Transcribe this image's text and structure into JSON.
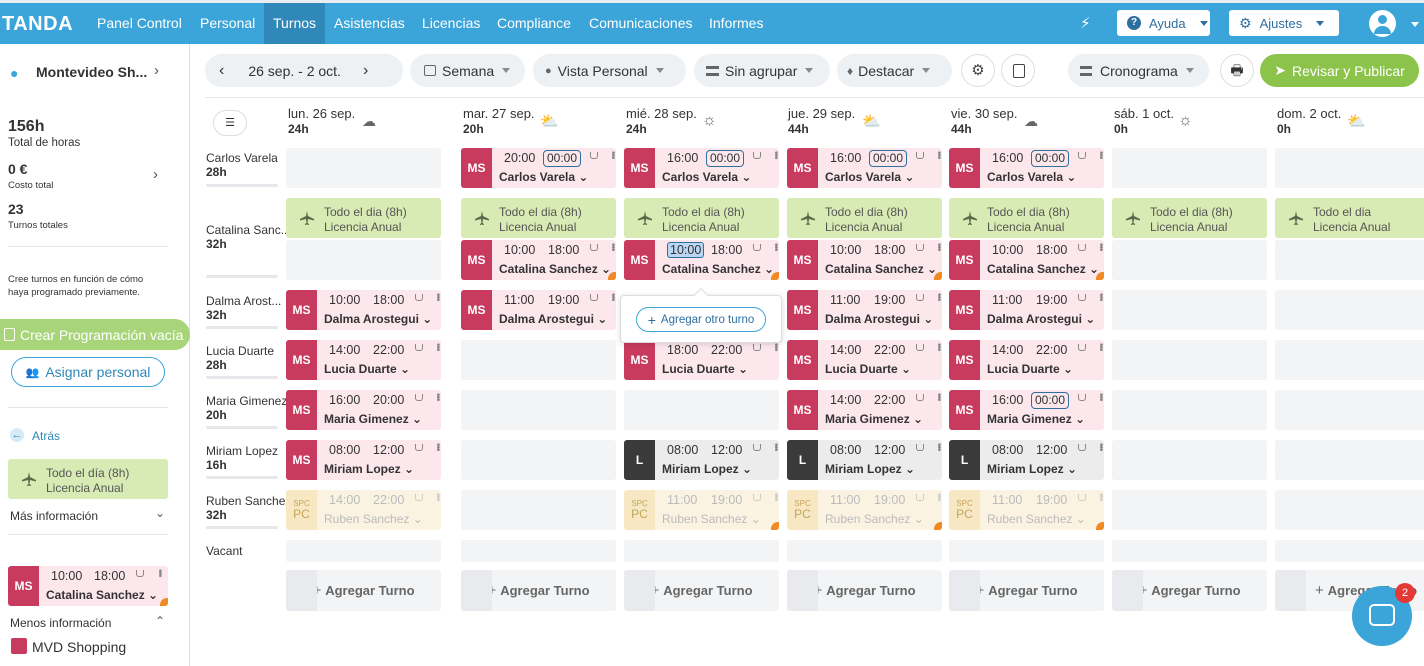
{
  "nav": {
    "logo": "TANDA",
    "items": [
      "Panel Control",
      "Personal",
      "Turnos",
      "Asistencias",
      "Licencias",
      "Compliance",
      "Comunicaciones",
      "Informes"
    ],
    "help": "Ayuda",
    "settings": "Ajustes"
  },
  "toolbar": {
    "range": "26 sep. - 2 oct.",
    "week": "Semana",
    "view": "Vista Personal",
    "group": "Sin agrupar",
    "highlight": "Destacar",
    "timeline": "Cronograma",
    "publish": "Revisar y Publicar"
  },
  "sidebar": {
    "location": "Montevideo Sh...",
    "hours_value": "156h",
    "hours_label": "Total de horas",
    "cost_value": "0 €",
    "cost_label": "Costo total",
    "shifts_value": "23",
    "shifts_label": "Turnos totales",
    "hint": "Cree turnos en función de cómo haya programado previamente.",
    "create_empty": "Crear Programación vacía",
    "assign": "Asignar personal",
    "back": "Atrás",
    "leave_line1": "Todo el día (8h)",
    "leave_line2": "Licencia Anual",
    "more_info": "Más información",
    "shift_start": "10:00",
    "shift_end": "18:00",
    "shift_badge": "MS",
    "shift_name": "Catalina Sanchez",
    "less_info": "Menos información",
    "area": "MVD Shopping"
  },
  "days": [
    {
      "label": "lun. 26 sep.",
      "hours": "24h"
    },
    {
      "label": "mar. 27 sep.",
      "hours": "20h"
    },
    {
      "label": "mié. 28 sep.",
      "hours": "24h"
    },
    {
      "label": "jue. 29 sep.",
      "hours": "44h"
    },
    {
      "label": "vie. 30 sep.",
      "hours": "44h"
    },
    {
      "label": "sáb. 1 oct.",
      "hours": "0h"
    },
    {
      "label": "dom. 2 oct.",
      "hours": "0h"
    }
  ],
  "staff": [
    {
      "name": "Carlos Varela",
      "hours": "28h"
    },
    {
      "name": "Catalina Sanc...",
      "hours": "32h"
    },
    {
      "name": "Dalma Arost...",
      "hours": "32h"
    },
    {
      "name": "Lucia Duarte",
      "hours": "28h"
    },
    {
      "name": "Maria Gimenez",
      "hours": "20h"
    },
    {
      "name": "Miriam Lopez",
      "hours": "16h"
    },
    {
      "name": "Ruben Sanchez",
      "hours": "32h"
    },
    {
      "name": "Vacant",
      "hours": ""
    }
  ],
  "leave": {
    "line1": "Todo el dia (8h)",
    "line1_sun": "Todo el dia",
    "line2": "Licencia Anual"
  },
  "shifts": {
    "carlos": {
      "start": "20:00",
      "start2": "16:00",
      "end": "00:00",
      "name": "Carlos Varela"
    },
    "catalina": {
      "start": "10:00",
      "end": "18:00",
      "name": "Catalina Sanchez"
    },
    "dalma": {
      "start": "10:00",
      "start2": "11:00",
      "end": "18:00",
      "end2": "19:00",
      "name": "Dalma Arostegui"
    },
    "lucia": {
      "start": "14:00",
      "start2": "18:00",
      "end": "22:00",
      "name": "Lucia Duarte"
    },
    "maria": {
      "start": "16:00",
      "start2": "14:00",
      "end": "20:00",
      "end2": "22:00",
      "end3": "00:00",
      "name": "Maria Gimenez"
    },
    "miriam": {
      "start": "08:00",
      "end": "12:00",
      "name": "Miriam Lopez"
    },
    "ruben": {
      "start": "14:00",
      "start2": "11:00",
      "end": "22:00",
      "end2": "19:00",
      "name": "Ruben Sanchez"
    },
    "ms": "MS",
    "l": "L",
    "spc": "SPC",
    "pc": "PC"
  },
  "add_shift": "Agregar Turno",
  "add_other": "Agregar otro turno",
  "chat_badge": "2"
}
